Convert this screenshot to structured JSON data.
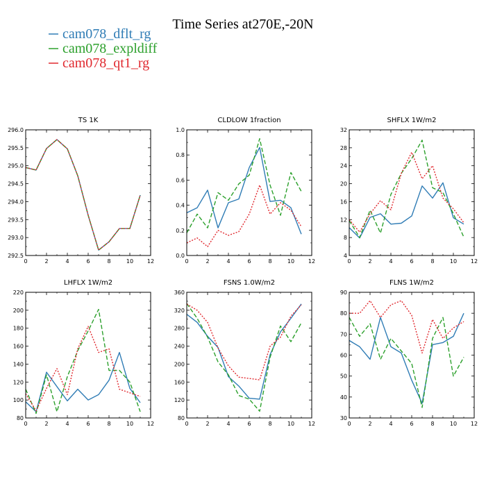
{
  "page_title": "Time Series at270E,-20N",
  "legend": [
    {
      "name": "cam078_dflt_rg",
      "color": "#2f7cb5",
      "dash": ""
    },
    {
      "name": "cam078_expldiff",
      "color": "#2ca02c",
      "dash": "6,3"
    },
    {
      "name": "cam078_qt1_rg",
      "color": "#e0282e",
      "dash": "2,2"
    }
  ],
  "chart_data": [
    {
      "type": "line",
      "title": "TS   1K",
      "x": [
        0,
        1,
        2,
        3,
        4,
        5,
        6,
        7,
        8,
        9,
        10,
        11
      ],
      "xlim": [
        0,
        12
      ],
      "xticks": [
        0,
        2,
        4,
        6,
        8,
        10,
        12
      ],
      "ylim": [
        292.5,
        296.0
      ],
      "yticks": [
        "292.5",
        "293.0",
        "293.5",
        "294.0",
        "294.5",
        "295.0",
        "295.5",
        "296.0"
      ],
      "series": [
        {
          "name": "cam078_dflt_rg",
          "values": [
            294.95,
            294.88,
            295.48,
            295.73,
            295.47,
            294.72,
            293.62,
            292.65,
            292.88,
            293.25,
            293.25,
            294.18
          ]
        },
        {
          "name": "cam078_expldiff",
          "values": [
            294.95,
            294.88,
            295.48,
            295.73,
            295.47,
            294.72,
            293.62,
            292.65,
            292.88,
            293.25,
            293.25,
            294.18
          ]
        },
        {
          "name": "cam078_qt1_rg",
          "values": [
            294.95,
            294.88,
            295.48,
            295.73,
            295.47,
            294.72,
            293.62,
            292.65,
            292.88,
            293.25,
            293.25,
            294.18
          ]
        }
      ]
    },
    {
      "type": "line",
      "title": "CLDLOW   1fraction",
      "x": [
        0,
        1,
        2,
        3,
        4,
        5,
        6,
        7,
        8,
        9,
        10,
        11
      ],
      "xlim": [
        0,
        12
      ],
      "xticks": [
        0,
        2,
        4,
        6,
        8,
        10,
        12
      ],
      "ylim": [
        0.0,
        1.0
      ],
      "yticks": [
        "0.0",
        "0.2",
        "0.4",
        "0.6",
        "0.8",
        "1.0"
      ],
      "series": [
        {
          "name": "cam078_dflt_rg",
          "values": [
            0.34,
            0.38,
            0.52,
            0.22,
            0.42,
            0.45,
            0.7,
            0.86,
            0.43,
            0.44,
            0.38,
            0.17
          ]
        },
        {
          "name": "cam078_expldiff",
          "values": [
            0.18,
            0.33,
            0.22,
            0.5,
            0.44,
            0.57,
            0.64,
            0.93,
            0.56,
            0.32,
            0.66,
            0.51
          ]
        },
        {
          "name": "cam078_qt1_rg",
          "values": [
            0.1,
            0.14,
            0.07,
            0.2,
            0.16,
            0.19,
            0.33,
            0.56,
            0.33,
            0.42,
            0.36,
            0.23
          ]
        }
      ]
    },
    {
      "type": "line",
      "title": "SHFLX   1W/m2",
      "x": [
        0,
        1,
        2,
        3,
        4,
        5,
        6,
        7,
        8,
        9,
        10,
        11
      ],
      "xlim": [
        0,
        12
      ],
      "xticks": [
        0,
        2,
        4,
        6,
        8,
        10,
        12
      ],
      "ylim": [
        4,
        32
      ],
      "yticks": [
        "4",
        "8",
        "12",
        "16",
        "20",
        "24",
        "28",
        "32"
      ],
      "series": [
        {
          "name": "cam078_dflt_rg",
          "values": [
            10.2,
            7.9,
            12.5,
            13.3,
            11.0,
            11.2,
            12.8,
            19.5,
            16.8,
            20.2,
            12.4,
            11.0
          ]
        },
        {
          "name": "cam078_expldiff",
          "values": [
            11.8,
            8.0,
            14.1,
            9.0,
            17.6,
            22.3,
            25.6,
            29.7,
            19.1,
            18.0,
            13.3,
            8.1
          ]
        },
        {
          "name": "cam078_qt1_rg",
          "values": [
            12.0,
            9.2,
            13.3,
            16.2,
            14.2,
            22.3,
            27.0,
            21.1,
            24.0,
            16.8,
            14.4,
            11.3
          ]
        }
      ]
    },
    {
      "type": "line",
      "title": "LHFLX   1W/m2",
      "x": [
        0,
        1,
        2,
        3,
        4,
        5,
        6,
        7,
        8,
        9,
        10,
        11
      ],
      "xlim": [
        0,
        12
      ],
      "xticks": [
        0,
        2,
        4,
        6,
        8,
        10,
        12
      ],
      "ylim": [
        80,
        220
      ],
      "yticks": [
        "80",
        "100",
        "120",
        "140",
        "160",
        "180",
        "200",
        "220"
      ],
      "series": [
        {
          "name": "cam078_dflt_rg",
          "values": [
            98,
            87,
            131,
            115,
            99,
            112,
            100,
            106,
            122,
            153,
            113,
            97
          ]
        },
        {
          "name": "cam078_expldiff",
          "values": [
            112,
            85,
            128,
            87,
            126,
            155,
            177,
            201,
            133,
            133,
            120,
            87
          ]
        },
        {
          "name": "cam078_qt1_rg",
          "values": [
            107,
            88,
            113,
            135,
            106,
            157,
            182,
            153,
            157,
            112,
            108,
            104
          ]
        }
      ]
    },
    {
      "type": "line",
      "title": "FSNS   1.0W/m2",
      "x": [
        0,
        1,
        2,
        3,
        4,
        5,
        6,
        7,
        8,
        9,
        10,
        11
      ],
      "xlim": [
        0,
        12
      ],
      "xticks": [
        0,
        2,
        4,
        6,
        8,
        10,
        12
      ],
      "ylim": [
        80,
        360
      ],
      "yticks": [
        "80",
        "120",
        "160",
        "200",
        "240",
        "280",
        "320",
        "360"
      ],
      "series": [
        {
          "name": "cam078_dflt_rg",
          "values": [
            311,
            293,
            262,
            237,
            172,
            151,
            124,
            122,
            221,
            272,
            302,
            334
          ]
        },
        {
          "name": "cam078_expldiff",
          "values": [
            335,
            302,
            260,
            205,
            176,
            130,
            122,
            95,
            215,
            285,
            250,
            292
          ]
        },
        {
          "name": "cam078_qt1_rg",
          "values": [
            334,
            320,
            293,
            236,
            196,
            171,
            168,
            165,
            240,
            260,
            307,
            332
          ]
        }
      ]
    },
    {
      "type": "line",
      "title": "FLNS   1W/m2",
      "x": [
        0,
        1,
        2,
        3,
        4,
        5,
        6,
        7,
        8,
        9,
        10,
        11
      ],
      "xlim": [
        0,
        12
      ],
      "xticks": [
        0,
        2,
        4,
        6,
        8,
        10,
        12
      ],
      "ylim": [
        30,
        90
      ],
      "yticks": [
        "30",
        "40",
        "50",
        "60",
        "70",
        "80",
        "90"
      ],
      "series": [
        {
          "name": "cam078_dflt_rg",
          "values": [
            67,
            64,
            58,
            78,
            64,
            61,
            48,
            37,
            65,
            66,
            69,
            80
          ]
        },
        {
          "name": "cam078_expldiff",
          "values": [
            78,
            69,
            75,
            58,
            68,
            62,
            56,
            35,
            68,
            78,
            50,
            59
          ]
        },
        {
          "name": "cam078_qt1_rg",
          "values": [
            80,
            80,
            86,
            78,
            84,
            86,
            79,
            61,
            77,
            68,
            73,
            76
          ]
        }
      ]
    }
  ]
}
